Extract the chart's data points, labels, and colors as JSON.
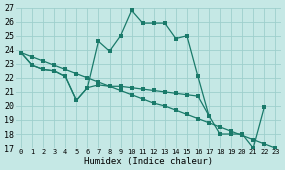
{
  "xlabel": "Humidex (Indice chaleur)",
  "xlim": [
    -0.5,
    23.5
  ],
  "ylim": [
    17,
    27
  ],
  "yticks": [
    17,
    18,
    19,
    20,
    21,
    22,
    23,
    24,
    25,
    26,
    27
  ],
  "xticks": [
    0,
    1,
    2,
    3,
    4,
    5,
    6,
    7,
    8,
    9,
    10,
    11,
    12,
    13,
    14,
    15,
    16,
    17,
    18,
    19,
    20,
    21,
    22,
    23
  ],
  "bg_color": "#c5e8e5",
  "grid_color": "#9ecfcc",
  "line_color": "#1a7a6a",
  "line1_x": [
    0,
    1,
    2,
    3,
    4,
    5,
    6,
    7,
    8,
    9,
    10,
    11,
    12,
    13,
    14,
    15,
    16,
    17
  ],
  "line1_y": [
    23.8,
    22.9,
    22.6,
    22.5,
    22.1,
    20.4,
    21.3,
    24.6,
    23.9,
    25.0,
    26.8,
    25.9,
    25.9,
    25.9,
    24.8,
    25.0,
    22.1,
    19.3
  ],
  "line2_x": [
    0,
    1,
    2,
    3,
    4,
    5,
    6,
    7,
    8,
    9,
    10,
    11,
    12,
    13,
    14,
    15,
    16,
    17,
    18,
    19,
    20,
    21,
    22,
    23
  ],
  "line2_y": [
    23.8,
    23.5,
    23.2,
    22.9,
    22.6,
    22.3,
    22.0,
    21.7,
    21.4,
    21.1,
    20.8,
    20.5,
    20.2,
    20.0,
    19.7,
    19.4,
    19.1,
    18.8,
    18.5,
    18.2,
    17.9,
    17.6,
    17.3,
    17.0
  ],
  "line3_x": [
    0,
    1,
    2,
    3,
    4,
    5,
    6,
    7,
    8,
    9,
    10,
    11,
    12,
    13,
    14,
    15,
    16,
    17,
    18,
    19,
    20,
    21,
    22
  ],
  "line3_y": [
    23.8,
    22.9,
    22.6,
    22.5,
    22.1,
    20.4,
    21.3,
    21.5,
    21.4,
    21.4,
    21.3,
    21.2,
    21.1,
    21.0,
    20.9,
    20.8,
    20.7,
    19.3,
    18.0,
    18.0,
    18.0,
    17.0,
    19.9
  ]
}
